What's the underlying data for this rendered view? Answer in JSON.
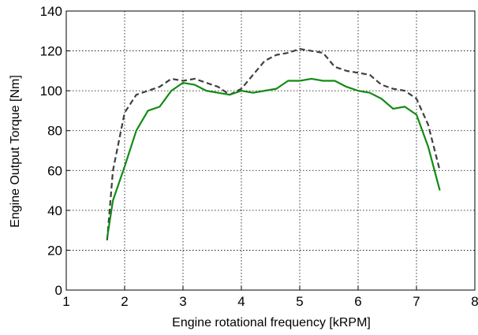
{
  "chart_data": {
    "type": "line",
    "xlabel": "Engine rotational frequency [kRPM]",
    "ylabel": "Engine Output Torque [Nm]",
    "x": [
      1.7,
      1.8,
      2.0,
      2.2,
      2.4,
      2.6,
      2.8,
      3.0,
      3.2,
      3.4,
      3.6,
      3.8,
      4.0,
      4.2,
      4.4,
      4.6,
      4.8,
      5.0,
      5.2,
      5.4,
      5.6,
      5.8,
      6.0,
      6.2,
      6.4,
      6.6,
      6.8,
      7.0,
      7.2,
      7.4
    ],
    "series": [
      {
        "color": "#404040",
        "dashed": true,
        "values": [
          25,
          60,
          89,
          98,
          100,
          102,
          106,
          105,
          106,
          104,
          102,
          98,
          101,
          108,
          115,
          118,
          119,
          121,
          120,
          119,
          112,
          110,
          109,
          108,
          103,
          101,
          100,
          96,
          83,
          60
        ]
      },
      {
        "color": "#138a13",
        "dashed": false,
        "values": [
          26,
          45,
          62,
          80,
          90,
          92,
          100,
          104,
          103,
          100,
          99,
          98,
          100,
          99,
          100,
          101,
          105,
          105,
          106,
          105,
          105,
          102,
          100,
          99,
          96,
          91,
          92,
          88,
          72,
          50
        ]
      }
    ],
    "xlim": [
      1,
      8
    ],
    "xticks": [
      1,
      2,
      3,
      4,
      5,
      6,
      7,
      8
    ],
    "ylim": [
      0,
      140
    ],
    "yticks": [
      0,
      20,
      40,
      60,
      80,
      100,
      120,
      140
    ],
    "grid": true
  }
}
